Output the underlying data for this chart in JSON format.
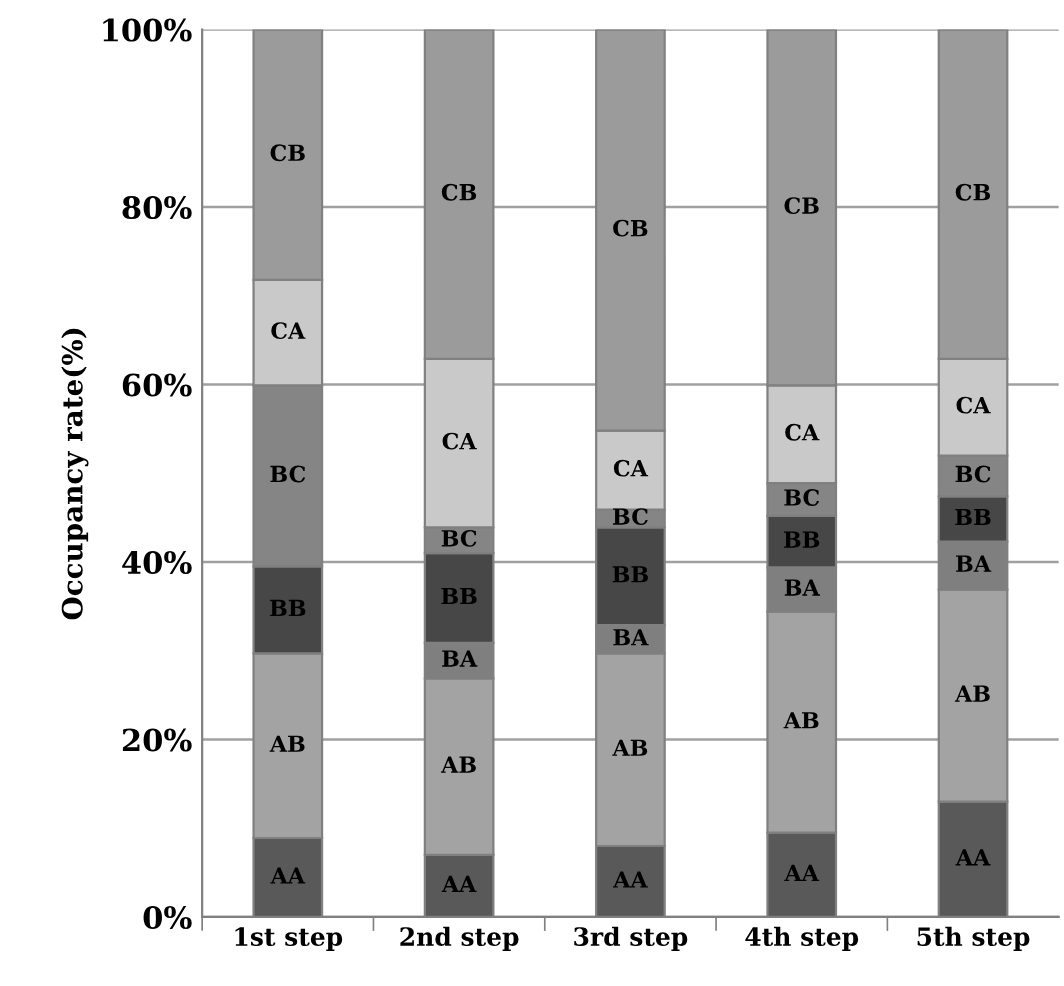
{
  "chart_data": {
    "type": "bar",
    "stacked": true,
    "ylabel": "Occupancy rate(%)",
    "categories": [
      "1st step",
      "2nd step",
      "3rd step",
      "4th step",
      "5th step"
    ],
    "series": [
      {
        "name": "AA",
        "color": "#595959",
        "values": [
          8.9,
          7.0,
          8.0,
          9.5,
          13.0
        ]
      },
      {
        "name": "AB",
        "color": "#a3a3a3",
        "values": [
          20.8,
          19.9,
          21.7,
          24.9,
          23.9
        ]
      },
      {
        "name": "BA",
        "color": "#7f7f7f",
        "values": [
          0,
          4.0,
          3.2,
          5.0,
          5.4
        ]
      },
      {
        "name": "BB",
        "color": "#474747",
        "values": [
          9.8,
          10.1,
          11.0,
          5.8,
          5.1
        ]
      },
      {
        "name": "BC",
        "color": "#858585",
        "values": [
          20.4,
          2.9,
          2.0,
          3.7,
          4.6
        ]
      },
      {
        "name": "CA",
        "color": "#c9c9c9",
        "values": [
          11.9,
          19.0,
          8.9,
          11.0,
          10.9
        ]
      },
      {
        "name": "CB",
        "color": "#9b9b9b",
        "values": [
          28.2,
          37.1,
          45.2,
          40.1,
          37.1
        ]
      }
    ],
    "ylim": [
      0,
      100
    ],
    "yticks": [
      {
        "value": 0,
        "label": "0%"
      },
      {
        "value": 20,
        "label": "20%"
      },
      {
        "value": 40,
        "label": "40%"
      },
      {
        "value": 60,
        "label": "60%"
      },
      {
        "value": 80,
        "label": "80%"
      },
      {
        "value": 100,
        "label": "100%"
      }
    ],
    "grid": "y"
  }
}
